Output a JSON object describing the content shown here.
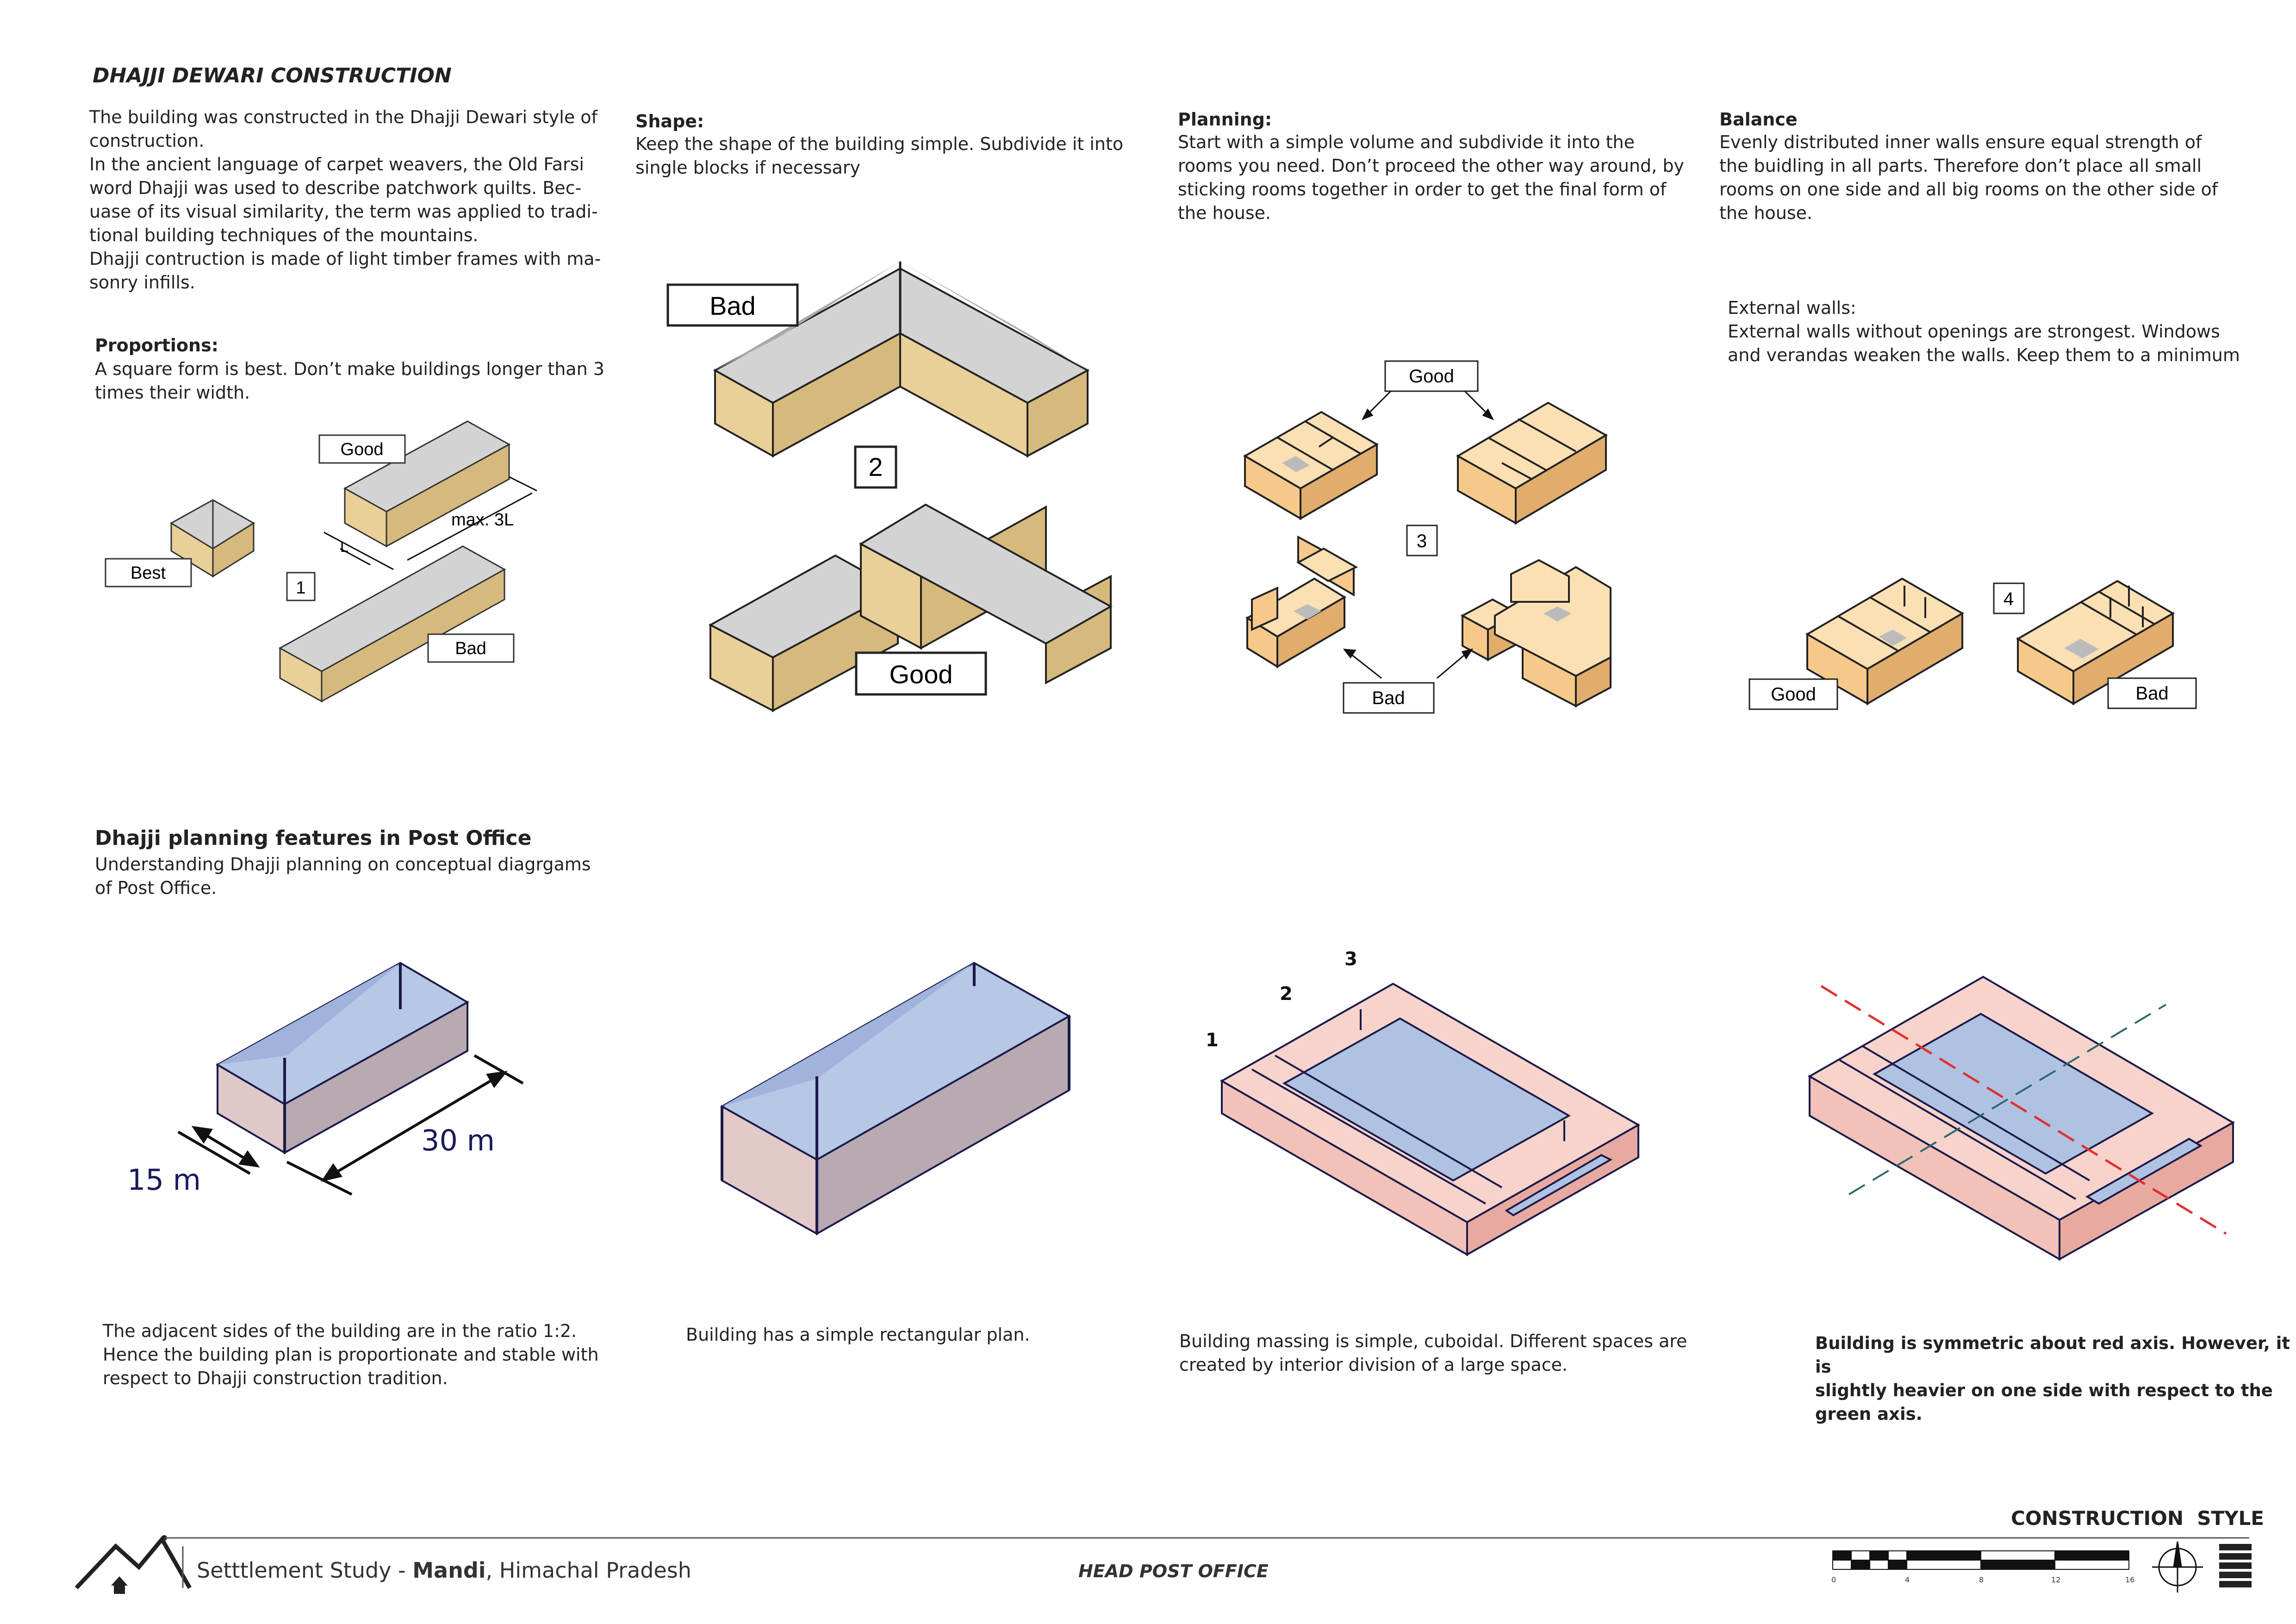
{
  "title": "DHAJJI DEWARI CONSTRUCTION",
  "intro": "The building was constructed in the Dhajji Dewari style of\nconstruction.\nIn the ancient language of carpet weavers, the Old Farsi\nword Dhajji was used to describe patchwork quilts. Bec-\nuase of its visual similarity, the term was applied to tradi-\ntional building techniques of the mountains.\nDhajji contruction is made of light timber frames with ma-\nsonry infills.",
  "proportions": {
    "heading": "Proportions:",
    "body": "A square form is best. Don’t make buildings longer than 3\ntimes their width.",
    "labels": {
      "good": "Good",
      "best": "Best",
      "bad": "Bad",
      "num": "1",
      "max": "max. 3L",
      "L": "L"
    }
  },
  "shape": {
    "heading": "Shape:",
    "body": "Keep the shape of the building simple. Subdivide it into\nsingle blocks if necessary",
    "labels": {
      "bad": "Bad",
      "good": "Good",
      "num": "2"
    }
  },
  "planning": {
    "heading": "Planning:",
    "body": "Start with a simple volume and subdivide it into the\nrooms you need. Don’t proceed the other way around, by\nsticking rooms together in order to get the final form of\nthe house.",
    "labels": {
      "good": "Good",
      "bad": "Bad",
      "num": "3"
    }
  },
  "balance": {
    "heading": "Balance",
    "body": "Evenly distributed inner walls ensure equal strength of\nthe buidling in all parts. Therefore don’t place all small\nrooms on one side and all big rooms on the other side of\nthe house.",
    "external": "External walls:\nExternal walls without openings are strongest. Windows\nand verandas weaken the walls. Keep them to a minimum",
    "labels": {
      "good": "Good",
      "bad": "Bad",
      "num": "4"
    }
  },
  "post_office": {
    "heading": "Dhajji planning features in Post Office",
    "body": "Understanding Dhajji planning on conceptual diagrgams\nof Post Office.",
    "dim_width": "15 m",
    "dim_length": "30 m",
    "caption1": "The adjacent sides of the building are in the ratio 1:2.\nHence the building plan is proportionate and stable with\nrespect to Dhajji construction tradition.",
    "caption2": "Building has a simple rectangular plan.",
    "caption3": "Building massing is simple, cuboidal. Different spaces are\ncreated by interior division of a large space.",
    "caption4": "Building is symmetric about red axis. However, it is\nslightly heavier on one side with respect to the\ngreen axis.",
    "space_labels": [
      "1",
      "2",
      "3"
    ]
  },
  "footer": {
    "settlement_prefix": "Setttlement Study - ",
    "settlement_city": "Mandi",
    "settlement_suffix": ", Himachal Pradesh",
    "building": "HEAD POST OFFICE",
    "sheet_title": "CONSTRUCTION  STYLE",
    "scale_ticks": [
      "0",
      "4",
      "8",
      "12",
      "16"
    ]
  },
  "colors": {
    "timber": "#e9cf98",
    "roof": "#d3d3d3",
    "room": "#f6c98a",
    "po_roof": "#b7c7e6",
    "po_wall": "#c4b2b7",
    "po_frame": "#f2c1b8",
    "po_slab": "#b0c2e2",
    "axis_red": "#e03030",
    "axis_green": "#2a6a6a"
  }
}
